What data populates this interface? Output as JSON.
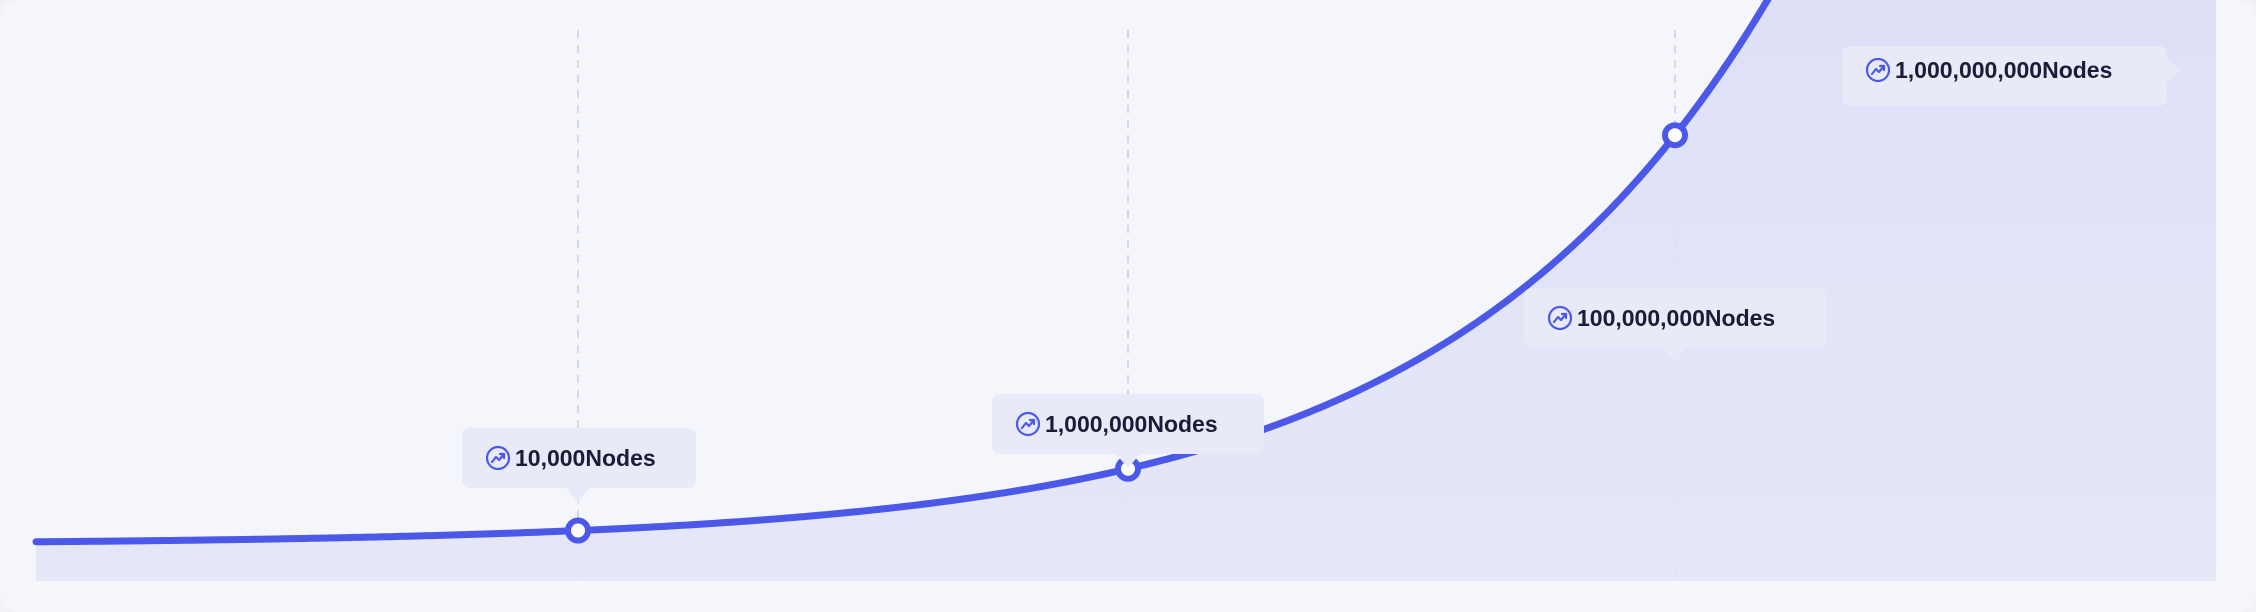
{
  "chart_data": {
    "type": "area",
    "title": "",
    "xlabel": "",
    "ylabel": "",
    "grid": false,
    "legend": "none",
    "scale": "exponential",
    "series": [
      {
        "name": "Nodes",
        "points": [
          {
            "label": "10,000",
            "unit": "Nodes"
          },
          {
            "label": "1,000,000",
            "unit": "Nodes"
          },
          {
            "label": "100,000,000",
            "unit": "Nodes"
          },
          {
            "label": "1,000,000,000",
            "unit": "Nodes"
          }
        ]
      }
    ]
  },
  "colors": {
    "line": "#4b58e8",
    "fill_top": "#c4c8f8",
    "fill_bottom": "#e4e6f8",
    "callout_bg": "#e8eaf7",
    "guide": "#cbcde0",
    "icon": "#4b58e8"
  },
  "icons": {
    "callout": "trending-up-icon"
  }
}
